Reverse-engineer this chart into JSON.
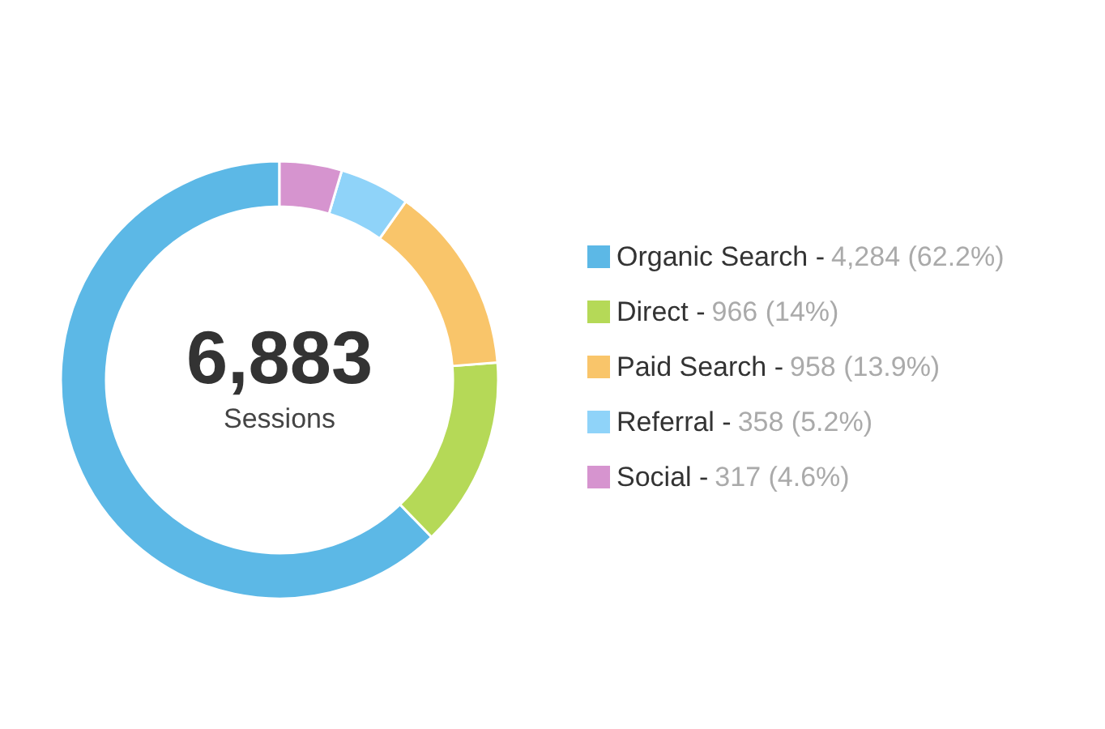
{
  "chart_data": {
    "type": "donut",
    "categories": [
      "Organic Search -",
      "Direct -",
      "Paid Search -",
      "Referral -",
      "Social -"
    ],
    "values": [
      4284,
      966,
      958,
      358,
      317
    ],
    "value_labels": [
      "4,284 (62.2%)",
      "966 (14%)",
      "958 (13.9%)",
      "358 (5.2%)",
      "317 (4.6%)"
    ],
    "colors": [
      "#5cb8e6",
      "#b5d957",
      "#f9c56a",
      "#8fd3f9",
      "#d694cf"
    ],
    "annotations": [
      "6,883",
      "Sessions"
    ],
    "legend": "right"
  }
}
